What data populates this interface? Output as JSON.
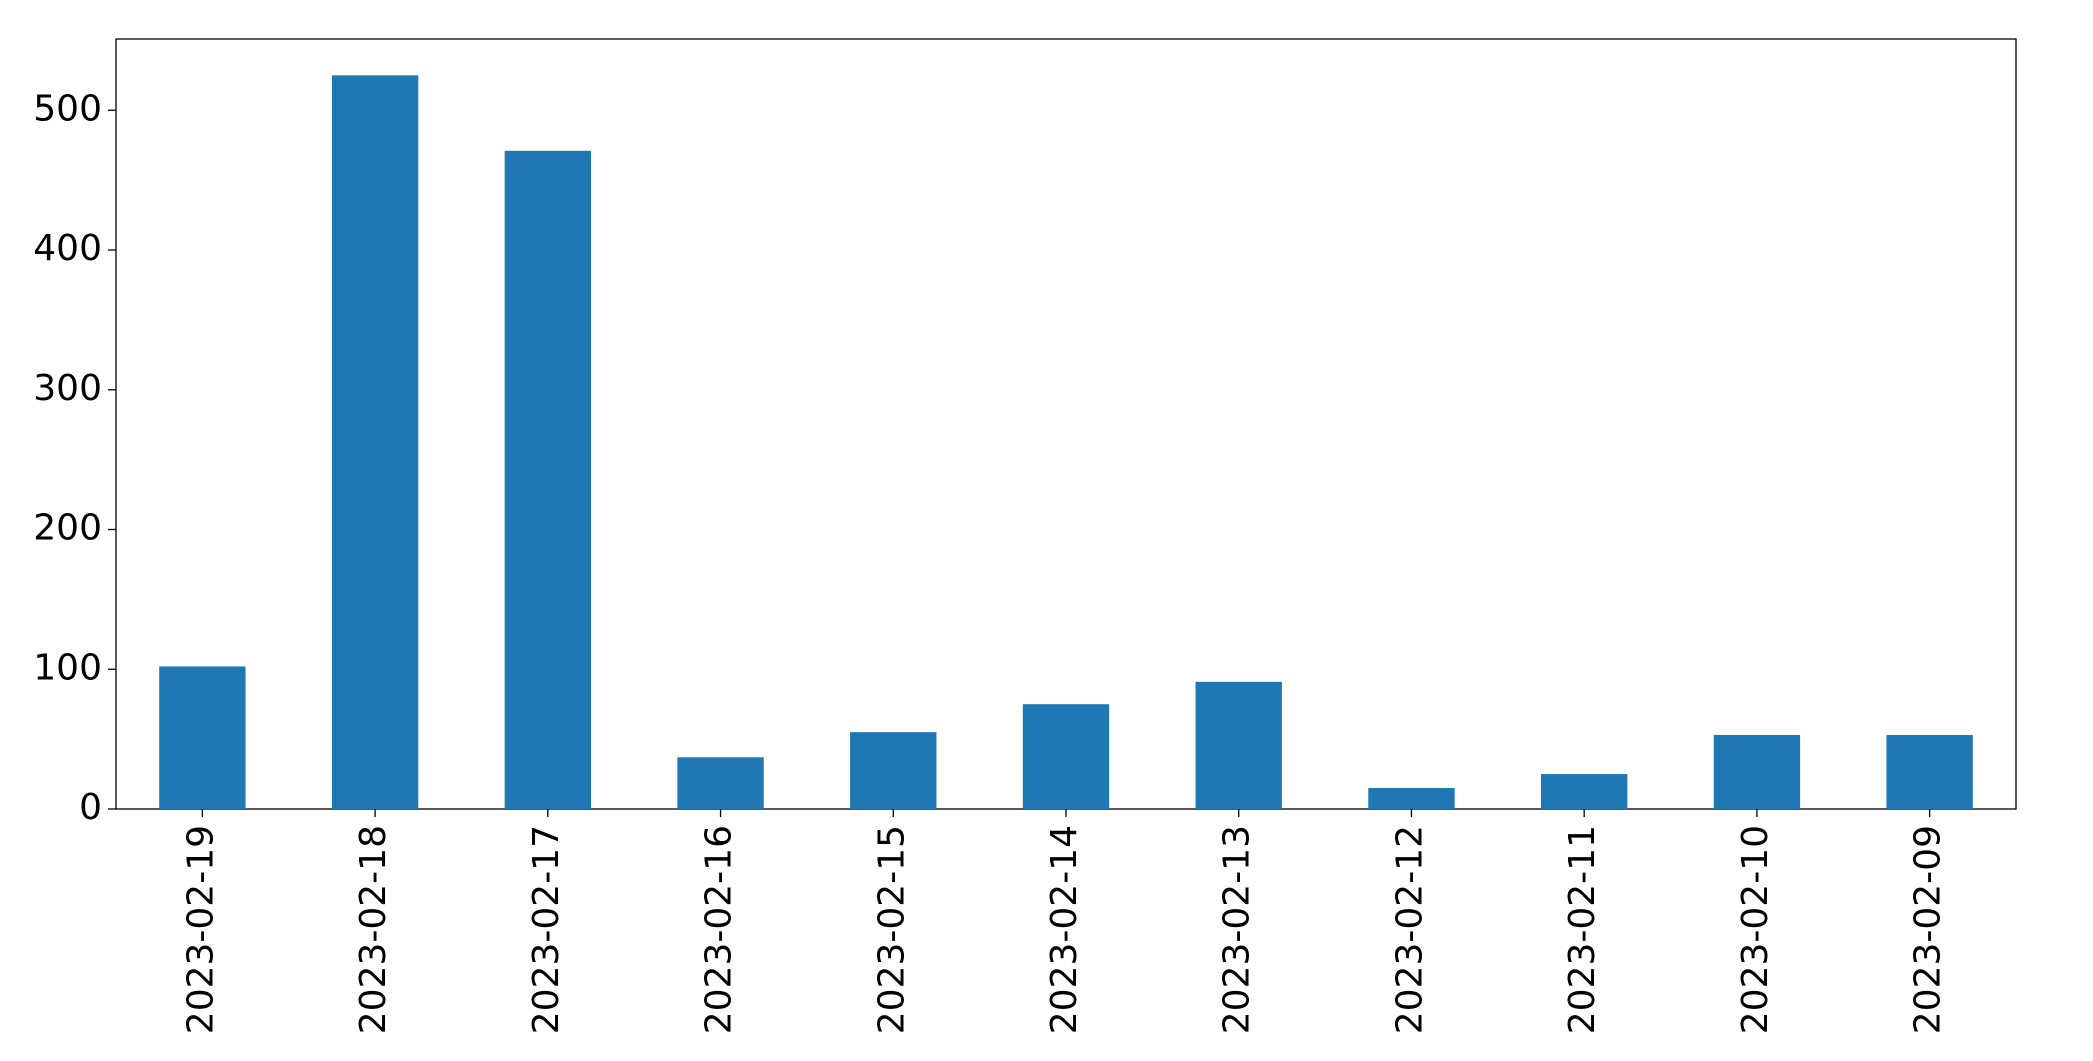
{
  "chart_data": {
    "type": "bar",
    "categories": [
      "2023-02-19",
      "2023-02-18",
      "2023-02-17",
      "2023-02-16",
      "2023-02-15",
      "2023-02-14",
      "2023-02-13",
      "2023-02-12",
      "2023-02-11",
      "2023-02-10",
      "2023-02-09"
    ],
    "values": [
      102,
      525,
      471,
      37,
      55,
      75,
      91,
      15,
      25,
      53,
      53
    ],
    "color": "#1f77b4",
    "ylim": [
      0,
      551
    ],
    "yticks": [
      0,
      100,
      200,
      300,
      400,
      500
    ],
    "grid": false
  }
}
